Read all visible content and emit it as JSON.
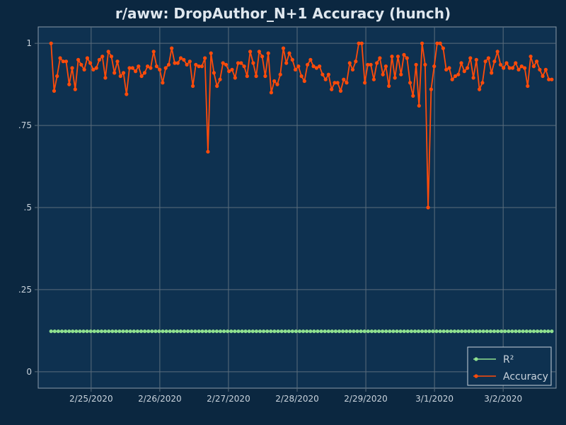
{
  "chart_data": {
    "type": "line",
    "title": "r/aww: DropAuthor_N+1 Accuracy (hunch)",
    "xlabel": "",
    "ylabel": "",
    "x_tick_labels": [
      "2/25/2020",
      "2/26/2020",
      "2/27/2020",
      "2/28/2020",
      "2/29/2020",
      "3/1/2020",
      "3/2/2020"
    ],
    "y_tick_labels": [
      "0",
      ".25",
      ".5",
      ".75",
      "1"
    ],
    "y_ticks": [
      0,
      0.25,
      0.5,
      0.75,
      1
    ],
    "ylim": [
      -0.05,
      1.05
    ],
    "xlim": [
      "2/24/2020 05:30",
      "3/2/2020 18:30"
    ],
    "grid": true,
    "legend_position": "bottom-right",
    "colors": {
      "background": "#0b2740",
      "plot_background": "#0e3150",
      "grid": "#5b6d7c",
      "r2": "#8fe08f",
      "accuracy": "#ff4b0a",
      "text": "#c9d3dc"
    },
    "series": [
      {
        "name": "R²",
        "x_start": "2/24/2020 10:00",
        "x_end": "3/2/2020 17:00",
        "values": [
          0.1232
        ]
      },
      {
        "name": "Accuracy",
        "x_start": "2/24/2020 10:00",
        "x_end": "3/2/2020 17:00",
        "values": [
          1.0,
          0.855,
          0.9,
          0.955,
          0.945,
          0.945,
          0.875,
          0.925,
          0.86,
          0.95,
          0.935,
          0.92,
          0.955,
          0.94,
          0.92,
          0.925,
          0.95,
          0.96,
          0.895,
          0.975,
          0.96,
          0.91,
          0.945,
          0.9,
          0.91,
          0.845,
          0.925,
          0.925,
          0.915,
          0.93,
          0.9,
          0.91,
          0.93,
          0.925,
          0.975,
          0.93,
          0.92,
          0.88,
          0.925,
          0.935,
          0.985,
          0.94,
          0.94,
          0.955,
          0.95,
          0.935,
          0.945,
          0.87,
          0.935,
          0.93,
          0.93,
          0.955,
          0.67,
          0.97,
          0.91,
          0.87,
          0.89,
          0.94,
          0.935,
          0.915,
          0.92,
          0.895,
          0.94,
          0.94,
          0.93,
          0.9,
          0.975,
          0.94,
          0.9,
          0.975,
          0.96,
          0.9,
          0.97,
          0.85,
          0.885,
          0.875,
          0.905,
          0.985,
          0.94,
          0.97,
          0.95,
          0.92,
          0.93,
          0.9,
          0.885,
          0.935,
          0.95,
          0.93,
          0.925,
          0.93,
          0.905,
          0.89,
          0.905,
          0.86,
          0.88,
          0.88,
          0.855,
          0.89,
          0.88,
          0.94,
          0.92,
          0.945,
          1.0,
          1.0,
          0.88,
          0.935,
          0.935,
          0.89,
          0.94,
          0.955,
          0.905,
          0.93,
          0.87,
          0.96,
          0.895,
          0.96,
          0.905,
          0.965,
          0.955,
          0.88,
          0.84,
          0.935,
          0.81,
          1.0,
          0.935,
          0.5,
          0.86,
          0.93,
          1.0,
          1.0,
          0.985,
          0.92,
          0.925,
          0.89,
          0.9,
          0.905,
          0.94,
          0.915,
          0.925,
          0.955,
          0.895,
          0.95,
          0.86,
          0.88,
          0.945,
          0.955,
          0.91,
          0.945,
          0.975,
          0.935,
          0.925,
          0.94,
          0.925,
          0.925,
          0.94,
          0.92,
          0.93,
          0.925,
          0.87,
          0.96,
          0.93,
          0.945,
          0.92,
          0.9,
          0.92,
          0.89,
          0.89
        ]
      }
    ]
  }
}
